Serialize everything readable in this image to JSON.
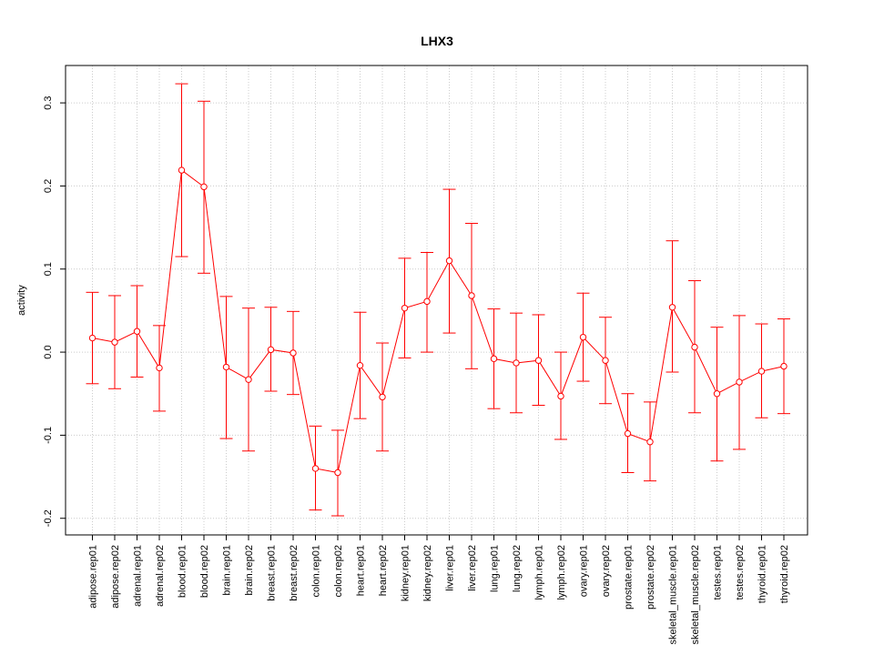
{
  "chart_data": {
    "type": "line",
    "title": "LHX3",
    "xlabel": "",
    "ylabel": "activity",
    "ylim": [
      -0.22,
      0.345
    ],
    "yticks": [
      -0.2,
      -0.1,
      0.0,
      0.1,
      0.2,
      0.3
    ],
    "ytick_labels": [
      "-0.2",
      "-0.1",
      "0.0",
      "0.1",
      "0.2",
      "0.3"
    ],
    "grid": true,
    "color": "#ff0000",
    "grid_color": "#cccccc",
    "categories": [
      "adipose.rep01",
      "adipose.rep02",
      "adrenal.rep01",
      "adrenal.rep02",
      "blood.rep01",
      "blood.rep02",
      "brain.rep01",
      "brain.rep02",
      "breast.rep01",
      "breast.rep02",
      "colon.rep01",
      "colon.rep02",
      "heart.rep01",
      "heart.rep02",
      "kidney.rep01",
      "kidney.rep02",
      "liver.rep01",
      "liver.rep02",
      "lung.rep01",
      "lung.rep02",
      "lymph.rep01",
      "lymph.rep02",
      "ovary.rep01",
      "ovary.rep02",
      "prostate.rep01",
      "prostate.rep02",
      "skeletal_muscle.rep01",
      "skeletal_muscle.rep02",
      "testes.rep01",
      "testes.rep02",
      "thyroid.rep01",
      "thyroid.rep02"
    ],
    "values": [
      0.017,
      0.012,
      0.025,
      -0.019,
      0.219,
      0.199,
      -0.018,
      -0.033,
      0.003,
      -0.001,
      -0.14,
      -0.145,
      -0.016,
      -0.054,
      0.053,
      0.061,
      0.11,
      0.068,
      -0.008,
      -0.013,
      -0.01,
      -0.053,
      0.018,
      -0.01,
      -0.098,
      -0.108,
      0.054,
      0.006,
      -0.05,
      -0.036,
      -0.023,
      -0.017
    ],
    "upper": [
      0.072,
      0.068,
      0.08,
      0.032,
      0.323,
      0.302,
      0.067,
      0.053,
      0.054,
      0.049,
      -0.089,
      -0.094,
      0.048,
      0.011,
      0.113,
      0.12,
      0.196,
      0.155,
      0.052,
      0.047,
      0.045,
      0.0,
      0.071,
      0.042,
      -0.05,
      -0.06,
      0.134,
      0.086,
      0.03,
      0.044,
      0.034,
      0.04
    ],
    "lower": [
      -0.038,
      -0.044,
      -0.03,
      -0.071,
      0.115,
      0.095,
      -0.104,
      -0.119,
      -0.047,
      -0.051,
      -0.19,
      -0.197,
      -0.08,
      -0.119,
      -0.007,
      0.0,
      0.023,
      -0.02,
      -0.068,
      -0.073,
      -0.064,
      -0.105,
      -0.035,
      -0.062,
      -0.145,
      -0.155,
      -0.024,
      -0.073,
      -0.131,
      -0.117,
      -0.079,
      -0.074
    ]
  }
}
